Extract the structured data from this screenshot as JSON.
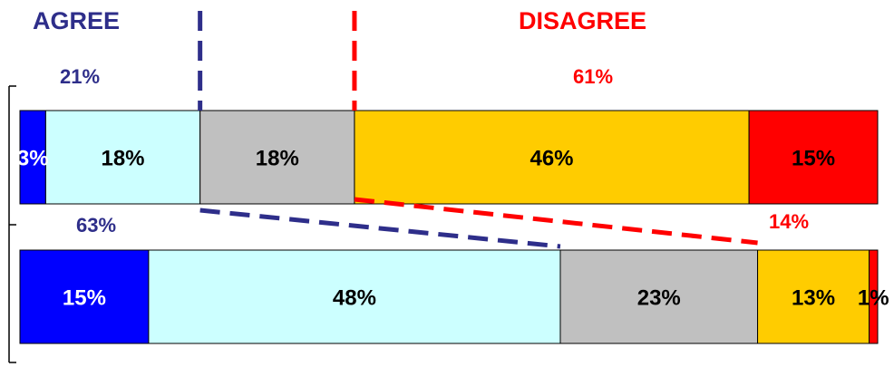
{
  "header": {
    "agree_label": "AGREE",
    "disagree_label": "DISAGREE",
    "agree_color": "#2e2e8a",
    "disagree_color": "#ff0000"
  },
  "chart_data": {
    "type": "bar",
    "orientation": "horizontal",
    "stacked": true,
    "xlim": [
      0,
      100
    ],
    "categories": [
      "",
      ""
    ],
    "segment_colors": [
      "#0000ff",
      "#ccffff",
      "#c0c0c0",
      "#ffcc00",
      "#ff0000"
    ],
    "rows": [
      {
        "values": [
          3,
          18,
          18,
          46,
          15
        ],
        "labels": [
          "3%",
          "18%",
          "18%",
          "46%",
          "15%"
        ],
        "agree_total": "21%",
        "disagree_total": "61%"
      },
      {
        "values": [
          15,
          48,
          23,
          13,
          1
        ],
        "labels": [
          "15%",
          "48%",
          "23%",
          "13%",
          "1%"
        ],
        "agree_total": "63%",
        "disagree_total": "14%"
      }
    ],
    "dividers": "dashed lines separate agree, neutral and disagree groups and connect the two rows"
  }
}
